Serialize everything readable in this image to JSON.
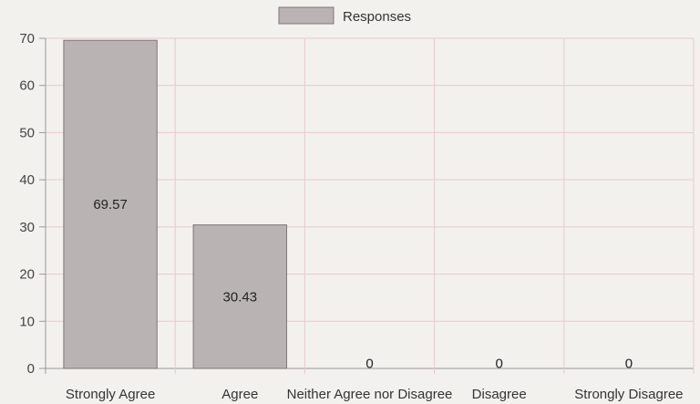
{
  "chart_data": {
    "type": "bar",
    "categories": [
      "Strongly Agree",
      "Agree",
      "Neither Agree nor Disagree",
      "Disagree",
      "Strongly Disagree"
    ],
    "series": [
      {
        "name": "Responses",
        "values": [
          69.57,
          30.43,
          0,
          0,
          0
        ]
      }
    ],
    "data_labels": [
      "69.57",
      "30.43",
      "0",
      "0",
      "0"
    ],
    "y_ticks": [
      "0",
      "10",
      "20",
      "30",
      "40",
      "50",
      "60",
      "70"
    ],
    "ylim": [
      0,
      70
    ],
    "legend": {
      "label": "Responses",
      "position": "top-center"
    },
    "grid": true,
    "colors": {
      "bar_fill": "#b9b4b3",
      "bar_stroke": "#7d7676",
      "grid": "#e6c9cf",
      "axis": "#999999"
    }
  }
}
